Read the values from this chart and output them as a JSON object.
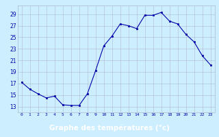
{
  "hours": [
    0,
    1,
    2,
    3,
    4,
    5,
    6,
    7,
    8,
    9,
    10,
    11,
    12,
    13,
    14,
    15,
    16,
    17,
    18,
    19,
    20,
    21,
    22,
    23
  ],
  "temperatures": [
    17.2,
    16.0,
    15.2,
    14.5,
    14.8,
    13.3,
    13.2,
    13.2,
    15.2,
    19.2,
    23.5,
    25.2,
    27.3,
    27.0,
    26.5,
    28.8,
    28.8,
    29.3,
    27.8,
    27.3,
    25.5,
    24.2,
    21.8,
    20.2
  ],
  "line_color": "#0000aa",
  "marker": "s",
  "marker_size": 2,
  "bg_color": "#cceeff",
  "grid_color": "#aabbcc",
  "xlabel": "Graphe des températures (°c)",
  "xlabel_color": "#ffffff",
  "xlabel_bg": "#0000cc",
  "yticks": [
    13,
    15,
    17,
    19,
    21,
    23,
    25,
    27,
    29
  ],
  "xtick_labels": [
    "0",
    "1",
    "2",
    "3",
    "4",
    "5",
    "6",
    "7",
    "8",
    "9",
    "10",
    "11",
    "12",
    "13",
    "14",
    "15",
    "16",
    "17",
    "18",
    "19",
    "20",
    "21",
    "22",
    "23"
  ],
  "ylim": [
    12.0,
    30.5
  ],
  "xlim": [
    -0.5,
    23.5
  ]
}
